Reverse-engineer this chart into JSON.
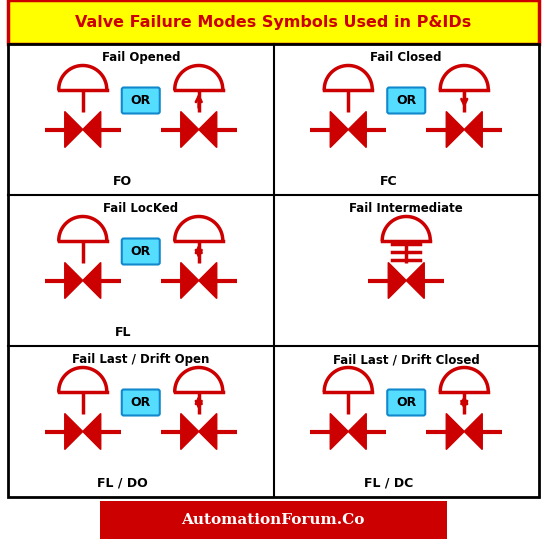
{
  "title": "Valve Failure Modes Symbols Used in P&IDs",
  "title_bg": "#FFFF00",
  "title_color": "#CC0000",
  "outer_border_color": "#CC0000",
  "valve_color": "#CC0000",
  "or_box_color": "#55DDFF",
  "footer_bg": "#CC0000",
  "footer_text": "AutomationForum.Co",
  "footer_text_color": "#FFFFFF",
  "bg_color": "#FFFFFF",
  "cells": [
    {
      "title": "Fail Opened",
      "label": "FO",
      "row": 0,
      "col": 0,
      "has_left": true,
      "arrow": "up",
      "or": true
    },
    {
      "title": "Fail Closed",
      "label": "FC",
      "row": 0,
      "col": 1,
      "has_left": true,
      "arrow": "down",
      "or": true
    },
    {
      "title": "Fail LocKed",
      "label": "FL",
      "row": 1,
      "col": 0,
      "has_left": true,
      "arrow": "both",
      "or": true
    },
    {
      "title": "Fail Intermediate",
      "label": "",
      "row": 1,
      "col": 1,
      "has_left": false,
      "arrow": "lines",
      "or": false
    },
    {
      "title": "Fail Last / Drift Open",
      "label": "FL / DO",
      "row": 2,
      "col": 0,
      "has_left": true,
      "arrow": "both",
      "or": true
    },
    {
      "title": "Fail Last / Drift Closed",
      "label": "FL / DC",
      "row": 2,
      "col": 1,
      "has_left": true,
      "arrow": "both",
      "or": true
    }
  ]
}
